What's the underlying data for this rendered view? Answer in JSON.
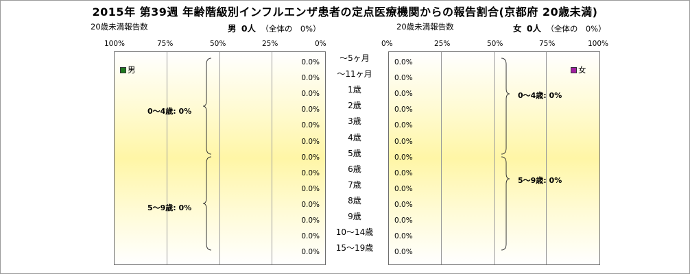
{
  "title": "2015年 第39週 年齢階級別インフルエンザ患者の定点医療機関からの報告割合(京都府 20歳未満)",
  "male": {
    "report_label": "20歳未満報告数",
    "summary_name": "男",
    "summary_count": "0人",
    "summary_share": "（全体の　0%）",
    "legend": "男",
    "legend_color": "#1f7a1f",
    "tick_labels": [
      "100%",
      "75%",
      "50%",
      "25%",
      "0%"
    ],
    "groups": [
      "0～4歳: 0%",
      "5～9歳: 0%"
    ]
  },
  "female": {
    "report_label": "20歳未満報告数",
    "summary_name": "女",
    "summary_count": "0人",
    "summary_share": "（全体の　0%）",
    "legend": "女",
    "legend_color": "#a020a0",
    "tick_labels": [
      "0%",
      "25%",
      "50%",
      "75%",
      "100%"
    ],
    "groups": [
      "0～4歳: 0%",
      "5～9歳: 0%"
    ]
  },
  "chart_data": {
    "type": "bar",
    "orientation": "horizontal-butterfly",
    "categories": [
      "～5ヶ月",
      "～11ヶ月",
      "1歳",
      "2歳",
      "3歳",
      "4歳",
      "5歳",
      "6歳",
      "7歳",
      "8歳",
      "9歳",
      "10～14歳",
      "15～19歳"
    ],
    "series": [
      {
        "name": "男",
        "values": [
          0,
          0,
          0,
          0,
          0,
          0,
          0,
          0,
          0,
          0,
          0,
          0,
          0
        ],
        "labels": [
          "0.0%",
          "0.0%",
          "0.0%",
          "0.0%",
          "0.0%",
          "0.0%",
          "0.0%",
          "0.0%",
          "0.0%",
          "0.0%",
          "0.0%",
          "0.0%",
          "0.0%"
        ]
      },
      {
        "name": "女",
        "values": [
          0,
          0,
          0,
          0,
          0,
          0,
          0,
          0,
          0,
          0,
          0,
          0,
          0
        ],
        "labels": [
          "0.0%",
          "0.0%",
          "0.0%",
          "0.0%",
          "0.0%",
          "0.0%",
          "0.0%",
          "0.0%",
          "0.0%",
          "0.0%",
          "0.0%",
          "0.0%",
          "0.0%"
        ]
      }
    ],
    "xlim": [
      0,
      100
    ],
    "unit": "%",
    "grid": true
  }
}
